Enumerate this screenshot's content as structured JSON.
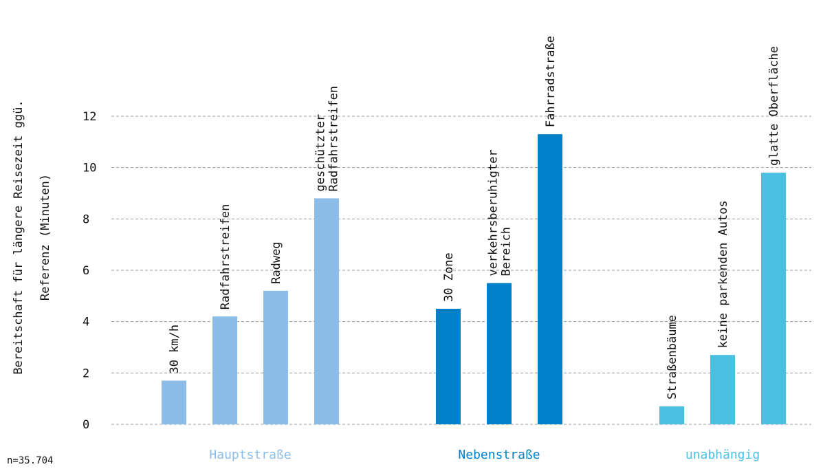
{
  "chart_data": {
    "type": "bar",
    "ylabel_lines": [
      "Bereitschaft für längere Reisezeit ggü.",
      "Referenz (Minuten)"
    ],
    "ylim": [
      0,
      12
    ],
    "yticks": [
      0,
      2,
      4,
      6,
      8,
      10,
      12
    ],
    "grid": true,
    "note": "n=35.704",
    "groups": [
      {
        "name": "Hauptstraße",
        "color": "#8bbde8",
        "bars": [
          {
            "label": [
              "30 km/h"
            ],
            "value": 1.7
          },
          {
            "label": [
              "Radfahrstreifen"
            ],
            "value": 4.2
          },
          {
            "label": [
              "Radweg"
            ],
            "value": 5.2
          },
          {
            "label": [
              "geschützter",
              "Radfahrstreifen"
            ],
            "value": 8.8
          }
        ]
      },
      {
        "name": "Nebenstraße",
        "color": "#0081c9",
        "bars": [
          {
            "label": [
              "30 Zone"
            ],
            "value": 4.5
          },
          {
            "label": [
              "verkehrsberuhigter",
              "Bereich"
            ],
            "value": 5.5
          },
          {
            "label": [
              "Fahrradstraße"
            ],
            "value": 11.3
          }
        ]
      },
      {
        "name": "unabhängig",
        "color": "#4bbfdf",
        "bars": [
          {
            "label": [
              "Straßenbäume"
            ],
            "value": 0.7
          },
          {
            "label": [
              "keine parkenden Autos"
            ],
            "value": 2.7
          },
          {
            "label": [
              "glatte Oberfläche"
            ],
            "value": 9.8
          }
        ]
      }
    ]
  }
}
